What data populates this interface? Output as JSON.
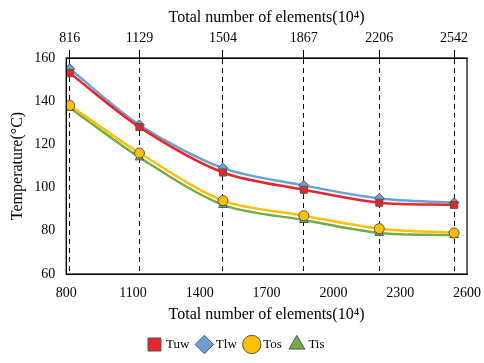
{
  "chart_data": {
    "type": "line",
    "xlabel": "Total number of elements(10⁴)",
    "x2label": "Total number of elements(10⁴)",
    "ylabel": "Temperature(°C)",
    "x": [
      816,
      1129,
      1504,
      1867,
      2206,
      2542
    ],
    "xlim": [
      800,
      2600
    ],
    "xticks": [
      800,
      1100,
      1400,
      1700,
      2000,
      2300,
      2600
    ],
    "x2lim": [
      800,
      2600
    ],
    "x2ticks": [
      816,
      1129,
      1504,
      1867,
      2206,
      2542
    ],
    "ylim": [
      60,
      160
    ],
    "yticks": [
      60,
      80,
      100,
      120,
      140,
      160
    ],
    "grid": true,
    "legend": "bottom",
    "series": [
      {
        "name": "Tuw",
        "color": "#e8262a",
        "marker": "square",
        "values": [
          153,
          128,
          107,
          99,
          93,
          92
        ]
      },
      {
        "name": "Tlw",
        "color": "#6a9fd8",
        "marker": "diamond",
        "values": [
          155,
          129,
          109,
          101,
          95,
          93
        ]
      },
      {
        "name": "Tos",
        "color": "#ffc000",
        "marker": "circle",
        "values": [
          138,
          116,
          94,
          87,
          81,
          79
        ]
      },
      {
        "name": "Tis",
        "color": "#70ad47",
        "marker": "triangle",
        "values": [
          137,
          114,
          92,
          85,
          79,
          78
        ]
      }
    ]
  }
}
